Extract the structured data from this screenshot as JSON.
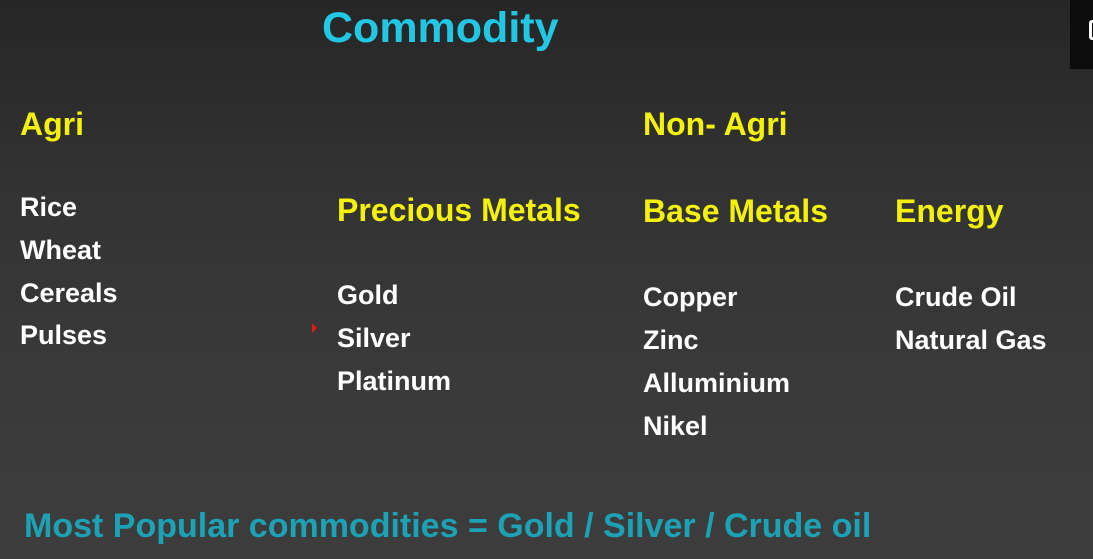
{
  "title": "Commodity",
  "agri": {
    "heading": "Agri",
    "items": [
      "Rice",
      "Wheat",
      "Cereals",
      "Pulses"
    ]
  },
  "non_agri": {
    "heading": "Non- Agri"
  },
  "precious_metals": {
    "heading": "Precious Metals",
    "items": [
      "Gold",
      "Silver",
      "Platinum"
    ]
  },
  "base_metals": {
    "heading": "Base Metals",
    "items": [
      "Copper",
      "Zinc",
      "Alluminium",
      "Nikel"
    ]
  },
  "energy": {
    "heading": "Energy",
    "items": [
      "Crude Oil",
      "Natural Gas"
    ]
  },
  "footer": "Most Popular commodities = Gold / Silver / Crude oil",
  "colors": {
    "title": "#21c7e3",
    "heading": "#f5f20a",
    "item": "#ffffff",
    "footer": "#1ba2b5"
  }
}
